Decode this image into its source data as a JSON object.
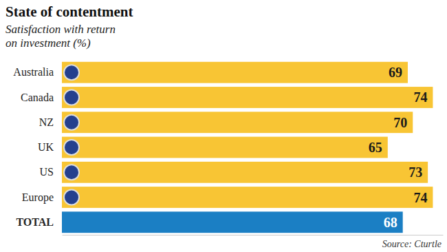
{
  "chart_data": {
    "type": "bar",
    "title": "State of contentment",
    "subtitle": "Satisfaction with return on investment (%)",
    "categories": [
      "Australia",
      "Canada",
      "NZ",
      "UK",
      "US",
      "Europe",
      "TOTAL"
    ],
    "values": [
      69,
      74,
      70,
      65,
      73,
      74,
      68
    ],
    "colors": [
      "#f8c534",
      "#f8c534",
      "#f8c534",
      "#f8c534",
      "#f8c534",
      "#f8c534",
      "#1b7fc4"
    ],
    "orientation": "horizontal",
    "xlim": [
      0,
      76
    ],
    "xticks": [],
    "tick_labels": "y",
    "data_labels": true,
    "grid": false,
    "annotations": [
      "Source: Cturtle"
    ]
  }
}
